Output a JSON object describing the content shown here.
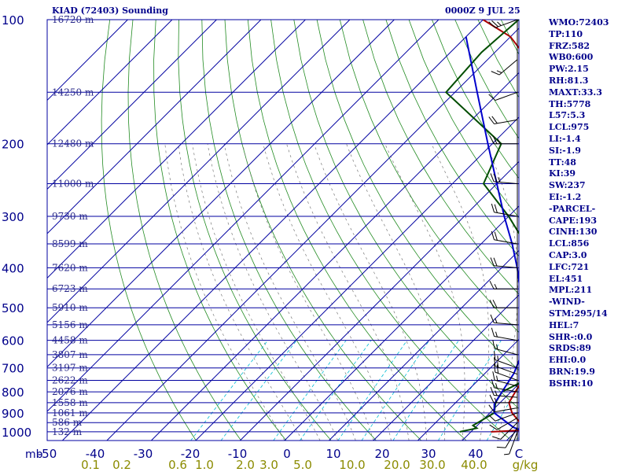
{
  "header": {
    "station": "KIAD (72403) Sounding",
    "time": "0000Z  9 JUL 25"
  },
  "stats": [
    "WMO:72403",
    "TP:110",
    "FRZ:582",
    "WB0:600",
    "PW:2.15",
    "RH:81.3",
    "MAXT:33.3",
    "TH:5778",
    "L57:5.3",
    "LCL:975",
    "LI:-1.4",
    "SI:-1.9",
    "TT:48",
    "KI:39",
    "SW:237",
    "EI:-1.2",
    "-PARCEL-",
    "CAPE:193",
    "CINH:130",
    "LCL:856",
    "CAP:3.0",
    "LFC:721",
    "EL:451",
    "MPL:211",
    "-WIND-",
    "STM:295/14",
    "HEL:7",
    "SHR-:0.0",
    "SRDS:89",
    "EHI:0.0",
    "BRN:19.9",
    "BSHR:10"
  ],
  "colors": {
    "isobar": "#0000a0",
    "isotherm": "#0000a0",
    "dry_adiabat": "#228b22",
    "moist_adiabat": "#7a7a7a",
    "mixing_ratio": "#00bcd4",
    "temperature": "#aa0000",
    "dewpoint": "#004d00",
    "parcel": "#0000cc",
    "labels": "#00008b",
    "mixing_labels": "#8b8b00"
  },
  "chart_data": {
    "type": "line",
    "title": "KIAD (72403) Sounding",
    "xlabel": "",
    "ylabel": "mb",
    "pressure_levels": [
      100,
      200,
      300,
      400,
      500,
      600,
      700,
      800,
      900,
      1000
    ],
    "temperature_ticks": [
      "-50",
      "-40",
      "-30",
      "-20",
      "-10",
      "0",
      "10",
      "20",
      "30",
      "40",
      "C"
    ],
    "mixing_ratio_ticks": [
      "0.1",
      "0.2",
      "0.6",
      "1.0",
      "2.0",
      "3.0",
      "5.0",
      "10.0",
      "20.0",
      "30.0",
      "40.0",
      "g/kg"
    ],
    "height_labels": [
      {
        "p": 100,
        "label": "16720 m"
      },
      {
        "p": 150,
        "label": "14250 m"
      },
      {
        "p": 200,
        "label": "12480 m"
      },
      {
        "p": 250,
        "label": "11000 m"
      },
      {
        "p": 300,
        "label": "9730 m"
      },
      {
        "p": 350,
        "label": "8599 m"
      },
      {
        "p": 400,
        "label": "7620 m"
      },
      {
        "p": 450,
        "label": "6723 m"
      },
      {
        "p": 500,
        "label": "5910 m"
      },
      {
        "p": 550,
        "label": "5156 m"
      },
      {
        "p": 600,
        "label": "4458 m"
      },
      {
        "p": 650,
        "label": "3807 m"
      },
      {
        "p": 700,
        "label": "3197 m"
      },
      {
        "p": 750,
        "label": "2622 m"
      },
      {
        "p": 800,
        "label": "2076 m"
      },
      {
        "p": 850,
        "label": "1558 m"
      },
      {
        "p": 900,
        "label": "1061 m"
      },
      {
        "p": 950,
        "label": "586 m"
      },
      {
        "p": 1000,
        "label": "132 m"
      }
    ],
    "series": [
      {
        "points": [
          [
            1000,
            24.5
          ],
          [
            990,
            32.5
          ],
          [
            950,
            29
          ],
          [
            900,
            25
          ],
          [
            850,
            22
          ],
          [
            800,
            21
          ],
          [
            750,
            20
          ],
          [
            700,
            18.5
          ],
          [
            650,
            15.5
          ],
          [
            600,
            13
          ],
          [
            550,
            12
          ],
          [
            500,
            10.5
          ],
          [
            460,
            9.5
          ],
          [
            430,
            5
          ],
          [
            400,
            2
          ],
          [
            350,
            -3.5
          ],
          [
            300,
            -9
          ],
          [
            250,
            -16
          ],
          [
            200,
            -22
          ],
          [
            150,
            -38
          ],
          [
            110,
            -60
          ],
          [
            100,
            -70
          ]
        ]
      },
      {
        "points": [
          [
            1000,
            17.5
          ],
          [
            980,
            20.5
          ],
          [
            965,
            19
          ],
          [
            950,
            19.5
          ],
          [
            900,
            21
          ],
          [
            850,
            19
          ],
          [
            800,
            18
          ],
          [
            760,
            20
          ],
          [
            700,
            19.5
          ],
          [
            650,
            18.5
          ],
          [
            600,
            17.5
          ],
          [
            560,
            17
          ],
          [
            545,
            13
          ],
          [
            540,
            18.5
          ],
          [
            530,
            17
          ],
          [
            500,
            13.5
          ],
          [
            460,
            10.5
          ],
          [
            440,
            2
          ],
          [
            400,
            -3
          ],
          [
            350,
            -10
          ],
          [
            300,
            -20
          ],
          [
            250,
            -33
          ],
          [
            200,
            -38
          ],
          [
            150,
            -62
          ],
          [
            120,
            -63
          ],
          [
            100,
            -62
          ]
        ]
      },
      {
        "points": [
          [
            1000,
            32
          ],
          [
            975,
            28.5
          ],
          [
            900,
            21
          ],
          [
            856,
            19
          ],
          [
            800,
            18
          ],
          [
            721,
            16.5
          ],
          [
            650,
            14
          ],
          [
            600,
            11.5
          ],
          [
            550,
            8
          ],
          [
            500,
            4
          ],
          [
            451,
            -1
          ],
          [
            400,
            -6.5
          ],
          [
            350,
            -13
          ],
          [
            300,
            -21
          ],
          [
            250,
            -30
          ],
          [
            200,
            -41
          ],
          [
            150,
            -55
          ],
          [
            110,
            -70
          ]
        ]
      }
    ],
    "winds": [
      {
        "p": 1000,
        "dir": 200,
        "spd": 5
      },
      {
        "p": 975,
        "dir": 210,
        "spd": 10
      },
      {
        "p": 950,
        "dir": 225,
        "spd": 10
      },
      {
        "p": 925,
        "dir": 240,
        "spd": 10
      },
      {
        "p": 900,
        "dir": 250,
        "spd": 10
      },
      {
        "p": 875,
        "dir": 260,
        "spd": 10
      },
      {
        "p": 850,
        "dir": 270,
        "spd": 15
      },
      {
        "p": 825,
        "dir": 275,
        "spd": 15
      },
      {
        "p": 800,
        "dir": 280,
        "spd": 15
      },
      {
        "p": 775,
        "dir": 285,
        "spd": 15
      },
      {
        "p": 750,
        "dir": 290,
        "spd": 20
      },
      {
        "p": 725,
        "dir": 290,
        "spd": 15
      },
      {
        "p": 700,
        "dir": 290,
        "spd": 15
      },
      {
        "p": 650,
        "dir": 285,
        "spd": 15
      },
      {
        "p": 600,
        "dir": 280,
        "spd": 15
      },
      {
        "p": 550,
        "dir": 275,
        "spd": 15
      },
      {
        "p": 500,
        "dir": 270,
        "spd": 20
      },
      {
        "p": 450,
        "dir": 270,
        "spd": 15
      },
      {
        "p": 400,
        "dir": 275,
        "spd": 20
      },
      {
        "p": 350,
        "dir": 280,
        "spd": 20
      },
      {
        "p": 300,
        "dir": 280,
        "spd": 20
      },
      {
        "p": 250,
        "dir": 275,
        "spd": 25
      },
      {
        "p": 200,
        "dir": 270,
        "spd": 25
      },
      {
        "p": 175,
        "dir": 260,
        "spd": 20
      },
      {
        "p": 150,
        "dir": 250,
        "spd": 10
      },
      {
        "p": 125,
        "dir": 230,
        "spd": 15
      },
      {
        "p": 100,
        "dir": 250,
        "spd": 25
      }
    ]
  }
}
